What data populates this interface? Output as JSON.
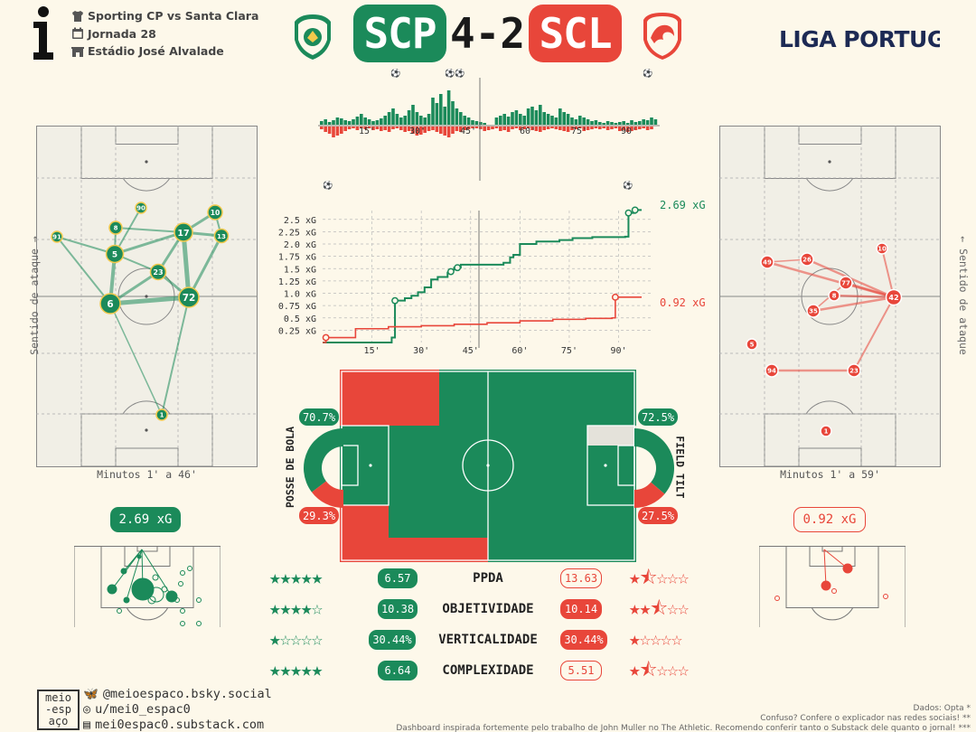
{
  "match": {
    "title": "Sporting CP vs Santa Clara",
    "round": "Jornada 28",
    "stadium": "Estádio José Alvalade",
    "home_abbr": "SCP",
    "away_abbr": "SCL",
    "score": "4-2",
    "league": "LIGA PORTUGAL"
  },
  "colors": {
    "home": "#1b8a5a",
    "away": "#e8463a",
    "bg": "#fdf8ea",
    "pitch": "#f1efe6"
  },
  "home_network": {
    "minutes": "Minutos 1' a 46'",
    "side_label": "Sentido de ataque",
    "players": [
      "91",
      "8",
      "90",
      "5",
      "17",
      "10",
      "13",
      "23",
      "6",
      "72",
      "1"
    ]
  },
  "away_network": {
    "minutes": "Minutos 1' a 59'",
    "side_label": "Sentido de ataque",
    "players": [
      "10",
      "49",
      "26",
      "77",
      "8",
      "42",
      "35",
      "5",
      "94",
      "23",
      "1"
    ]
  },
  "momentum": {
    "ticks": [
      "15'",
      "30'",
      "45'",
      "60'",
      "75'",
      "90'"
    ]
  },
  "xg_chart": {
    "yticks": [
      "2.5 xG",
      "2.25 xG",
      "2.0 xG",
      "1.75 xG",
      "1.5 xG",
      "1.25 xG",
      "1.0 xG",
      "0.75 xG",
      "0.5 xG",
      "0.25 xG"
    ],
    "xticks": [
      "15'",
      "30'",
      "45'",
      "60'",
      "75'",
      "90'"
    ],
    "home_final": "2.69 xG",
    "away_final": "0.92 xG"
  },
  "possession": {
    "label": "POSSE DE BOLA",
    "home": "70.7%",
    "away": "29.3%",
    "home_value": 70.7,
    "away_value": 29.3
  },
  "field_tilt": {
    "label": "FIELD TILT",
    "home": "72.5%",
    "away": "27.5%",
    "home_value": 72.5,
    "away_value": 27.5
  },
  "xg_totals": {
    "home": "2.69 xG",
    "away": "0.92 xG"
  },
  "stats": [
    {
      "label": "PPDA",
      "home": "6.57",
      "away": "13.63",
      "home_stars": 5,
      "away_stars": 1.5
    },
    {
      "label": "OBJETIVIDADE",
      "home": "10.38",
      "away": "10.14",
      "home_stars": 4,
      "away_stars": 2.5
    },
    {
      "label": "VERTICALIDADE",
      "home": "30.44%",
      "away": "30.44%",
      "home_stars": 1,
      "away_stars": 1
    },
    {
      "label": "COMPLEXIDADE",
      "home": "6.64",
      "away": "5.51",
      "home_stars": 5,
      "away_stars": 1.5
    }
  ],
  "socials": {
    "bluesky": "@meioespaco.bsky.social",
    "reddit": "u/mei0_espac0",
    "substack": "mei0espac0.substack.com",
    "logo": "meio-espaço"
  },
  "credits": {
    "line1": "Dados: Opta *",
    "line2": "Confuso? Confere o explicador nas redes sociais! **",
    "line3": "Dashboard inspirada fortemente pelo trabalho de John Muller no The Athletic. Recomendo conferir tanto o Substack dele quanto o jornal! ***"
  }
}
